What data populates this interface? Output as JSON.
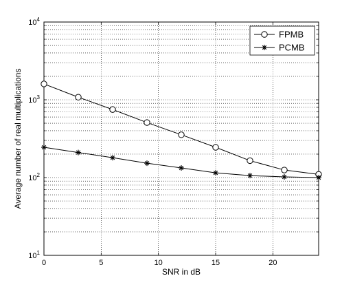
{
  "chart_data": {
    "type": "line",
    "title": "",
    "xlabel": "SNR in dB",
    "ylabel": "Average number of real multiplications",
    "xlim": [
      0,
      24
    ],
    "ylim": [
      10,
      10000
    ],
    "yscale": "log",
    "grid": true,
    "grid_style": "dotted",
    "legend_position": "top-right",
    "x_ticks": [
      0,
      5,
      10,
      15,
      20
    ],
    "y_ticks": [
      {
        "value": 10,
        "base": "10",
        "exp": "1"
      },
      {
        "value": 100,
        "base": "10",
        "exp": "2"
      },
      {
        "value": 1000,
        "base": "10",
        "exp": "3"
      },
      {
        "value": 10000,
        "base": "10",
        "exp": "4"
      }
    ],
    "series": [
      {
        "name": "FPMB",
        "marker": "circle",
        "color": "#000000",
        "x": [
          0,
          3,
          6,
          9,
          12,
          15,
          18,
          21,
          24
        ],
        "y": [
          1600,
          1080,
          750,
          510,
          355,
          245,
          165,
          125,
          110
        ]
      },
      {
        "name": "PCMB",
        "marker": "star",
        "color": "#000000",
        "x": [
          0,
          3,
          6,
          9,
          12,
          15,
          18,
          21,
          24
        ],
        "y": [
          245,
          210,
          180,
          153,
          133,
          115,
          106,
          102,
          100
        ]
      }
    ]
  }
}
